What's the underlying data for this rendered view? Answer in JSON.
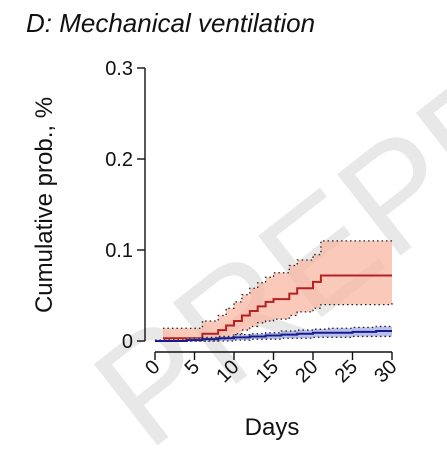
{
  "panel": {
    "title": "D: Mechanical ventilation",
    "watermark": "PREPRINT"
  },
  "chart_data": {
    "type": "line",
    "title": "D: Mechanical ventilation",
    "xlabel": "Days",
    "ylabel": "Cumulative prob., %",
    "xlim": [
      0,
      30
    ],
    "ylim": [
      0,
      0.3
    ],
    "x_ticks": [
      "0",
      "5",
      "10",
      "15",
      "20",
      "25",
      "30"
    ],
    "y_ticks": [
      "0",
      "0.1",
      "0.2",
      "0.3"
    ],
    "grid": false,
    "legend": "none",
    "step": true,
    "series": [
      {
        "color": "#b22222",
        "band_color": "#f9b7a3",
        "x": [
          1,
          5,
          6,
          8,
          9,
          10,
          11,
          12,
          13,
          14,
          15,
          17,
          18,
          20,
          21,
          30
        ],
        "y": [
          0.003,
          0.003,
          0.008,
          0.012,
          0.017,
          0.022,
          0.028,
          0.033,
          0.038,
          0.043,
          0.046,
          0.052,
          0.058,
          0.065,
          0.072,
          0.072
        ],
        "lower": [
          0.0,
          0.0,
          0.0,
          0.002,
          0.004,
          0.008,
          0.012,
          0.016,
          0.02,
          0.022,
          0.024,
          0.028,
          0.032,
          0.036,
          0.04,
          0.042
        ],
        "upper": [
          0.014,
          0.014,
          0.022,
          0.028,
          0.036,
          0.043,
          0.051,
          0.058,
          0.064,
          0.07,
          0.075,
          0.083,
          0.089,
          0.095,
          0.11,
          0.11
        ]
      },
      {
        "color": "#1a1a8c",
        "band_color": "#9aa6e6",
        "x": [
          0,
          4,
          6,
          8,
          10,
          12,
          14,
          16,
          18,
          20,
          22,
          25,
          28,
          30
        ],
        "y": [
          0.0,
          0.001,
          0.002,
          0.003,
          0.004,
          0.005,
          0.006,
          0.007,
          0.008,
          0.009,
          0.009,
          0.01,
          0.011,
          0.011
        ],
        "lower": [
          0.0,
          0.0,
          0.0,
          0.0,
          0.001,
          0.002,
          0.002,
          0.003,
          0.003,
          0.004,
          0.004,
          0.005,
          0.005,
          0.005
        ],
        "upper": [
          0.001,
          0.003,
          0.004,
          0.005,
          0.007,
          0.008,
          0.009,
          0.011,
          0.012,
          0.013,
          0.014,
          0.015,
          0.016,
          0.016
        ]
      }
    ]
  }
}
